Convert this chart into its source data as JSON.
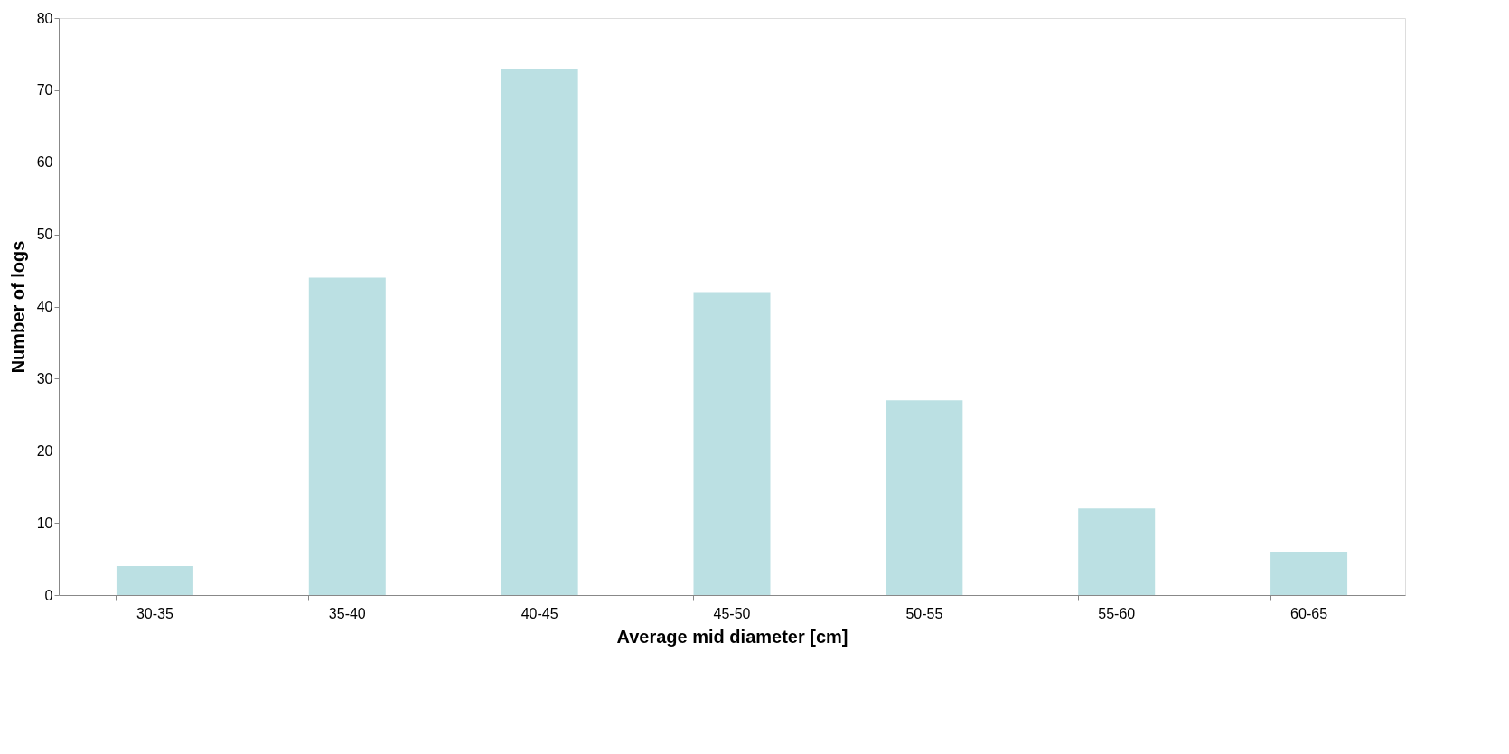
{
  "chart_data": {
    "type": "bar",
    "xlabel": "Average mid diameter [cm]",
    "ylabel": "Number of logs",
    "categories": [
      "30-35",
      "35-40",
      "40-45",
      "45-50",
      "50-55",
      "55-60",
      "60-65"
    ],
    "values": [
      4,
      44,
      73,
      42,
      27,
      12,
      6
    ],
    "color": "#bbe0e3",
    "ylim": [
      0,
      80
    ],
    "yticks": [
      0,
      10,
      20,
      30,
      40,
      50,
      60,
      70,
      80
    ],
    "grid": false
  }
}
